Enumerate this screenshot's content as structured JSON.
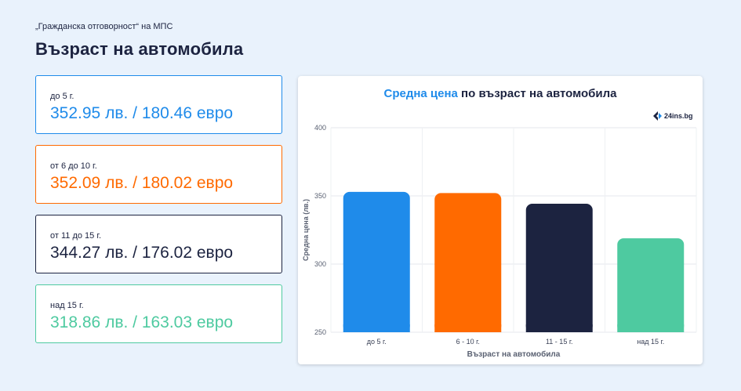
{
  "header": {
    "subtitle": "„Гражданска отговорност“ на МПС",
    "title": "Възраст на автомобила"
  },
  "cards": [
    {
      "label": "до 5 г.",
      "value": "352.95 лв. / 180.46 евро",
      "color": "#1f8bea"
    },
    {
      "label": "от 6 до 10 г.",
      "value": "352.09 лв. / 180.02 евро",
      "color": "#ff6a00"
    },
    {
      "label": "от 11 до 15 г.",
      "value": "344.27 лв. / 176.02 евро",
      "color": "#1c2340"
    },
    {
      "label": "над 15 г.",
      "value": "318.86 лв. / 163.03 евро",
      "color": "#4ecaa0"
    }
  ],
  "chart_title": {
    "accent": "Средна цена",
    "rest": " по възраст на автомобила"
  },
  "logo": {
    "text": "24ins.bg",
    "icon": "24ins-logo-icon"
  },
  "chart_data": {
    "type": "bar",
    "categories": [
      "до 5 г.",
      "6 - 10 г.",
      "11 - 15 г.",
      "над 15 г."
    ],
    "values": [
      352.95,
      352.09,
      344.27,
      318.86
    ],
    "colors": [
      "#1f8bea",
      "#ff6a00",
      "#1c2340",
      "#4ecaa0"
    ],
    "xlabel": "Възраст на автомобила",
    "ylabel": "Средна цена (лв.)",
    "ylim": [
      250,
      400
    ],
    "yticks": [
      250,
      300,
      350,
      400
    ],
    "grid": true
  }
}
